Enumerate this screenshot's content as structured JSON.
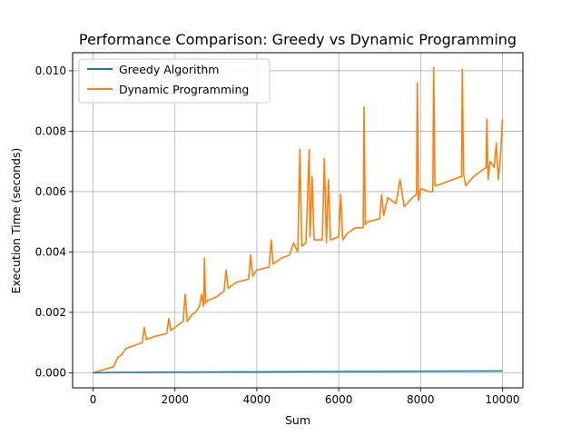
{
  "chart_data": {
    "type": "line",
    "title": "Performance Comparison: Greedy vs Dynamic Programming",
    "xlabel": "Sum",
    "ylabel": "Execution Time (seconds)",
    "xlim": [
      -500,
      10500
    ],
    "ylim": [
      -0.0005,
      0.0106
    ],
    "grid": true,
    "legend_position": "top-left",
    "x_ticks": [
      0,
      2000,
      4000,
      6000,
      8000,
      10000
    ],
    "x_tick_labels": [
      "0",
      "2000",
      "4000",
      "6000",
      "8000",
      "10000"
    ],
    "y_ticks": [
      0.0,
      0.002,
      0.004,
      0.006,
      0.008,
      0.01
    ],
    "y_tick_labels": [
      "0.000",
      "0.002",
      "0.004",
      "0.006",
      "0.008",
      "0.010"
    ],
    "series": [
      {
        "name": "Greedy Algorithm",
        "color": "#1f77b4",
        "x": [
          0,
          500,
          1000,
          2000,
          3000,
          4000,
          5000,
          6000,
          7000,
          8000,
          9000,
          10000
        ],
        "y": [
          0.0,
          1e-05,
          1.5e-05,
          2e-05,
          2.5e-05,
          3e-05,
          3.5e-05,
          4e-05,
          4.5e-05,
          5e-05,
          5.5e-05,
          6e-05
        ]
      },
      {
        "name": "Dynamic Programming",
        "color": "#ff7f0e",
        "x": [
          0,
          250,
          500,
          600,
          700,
          800,
          1000,
          1200,
          1250,
          1300,
          1500,
          1800,
          1850,
          1900,
          2000,
          2200,
          2250,
          2300,
          2400,
          2500,
          2600,
          2650,
          2700,
          2720,
          2750,
          2800,
          3000,
          3200,
          3250,
          3300,
          3500,
          3800,
          3850,
          3900,
          4000,
          4300,
          4350,
          4400,
          4600,
          4800,
          4900,
          5000,
          5050,
          5100,
          5200,
          5280,
          5300,
          5350,
          5400,
          5600,
          5650,
          5700,
          5750,
          5800,
          6000,
          6050,
          6100,
          6200,
          6400,
          6600,
          6620,
          6650,
          6700,
          7000,
          7050,
          7100,
          7200,
          7400,
          7500,
          7600,
          7800,
          7900,
          7920,
          7950,
          8000,
          8200,
          8300,
          8320,
          8350,
          8400,
          8600,
          8800,
          9000,
          9020,
          9050,
          9100,
          9300,
          9500,
          9600,
          9620,
          9650,
          9700,
          9800,
          9850,
          9900,
          9950,
          10000
        ],
        "y": [
          0.0,
          0.0001,
          0.0002,
          0.0005,
          0.0006,
          0.0008,
          0.0009,
          0.001,
          0.0015,
          0.0011,
          0.0012,
          0.0013,
          0.0018,
          0.0014,
          0.0015,
          0.0017,
          0.0026,
          0.0017,
          0.0019,
          0.002,
          0.0022,
          0.0026,
          0.0022,
          0.0038,
          0.0023,
          0.0024,
          0.0025,
          0.0027,
          0.0034,
          0.0028,
          0.003,
          0.0031,
          0.0039,
          0.0032,
          0.0034,
          0.0035,
          0.0044,
          0.0036,
          0.0038,
          0.0039,
          0.0043,
          0.004,
          0.0074,
          0.0042,
          0.0043,
          0.0074,
          0.0045,
          0.0065,
          0.0044,
          0.0044,
          0.0071,
          0.0043,
          0.0064,
          0.0044,
          0.0045,
          0.0059,
          0.0044,
          0.0046,
          0.0048,
          0.0048,
          0.0088,
          0.0049,
          0.005,
          0.0051,
          0.0059,
          0.0052,
          0.0058,
          0.0056,
          0.0064,
          0.0055,
          0.0058,
          0.0059,
          0.0096,
          0.0057,
          0.0061,
          0.006,
          0.006,
          0.0101,
          0.0062,
          0.0062,
          0.0063,
          0.0064,
          0.0065,
          0.01005,
          0.0066,
          0.0062,
          0.0065,
          0.0067,
          0.0068,
          0.0084,
          0.0064,
          0.007,
          0.0068,
          0.0076,
          0.0064,
          0.0071,
          0.0084
        ]
      }
    ]
  }
}
